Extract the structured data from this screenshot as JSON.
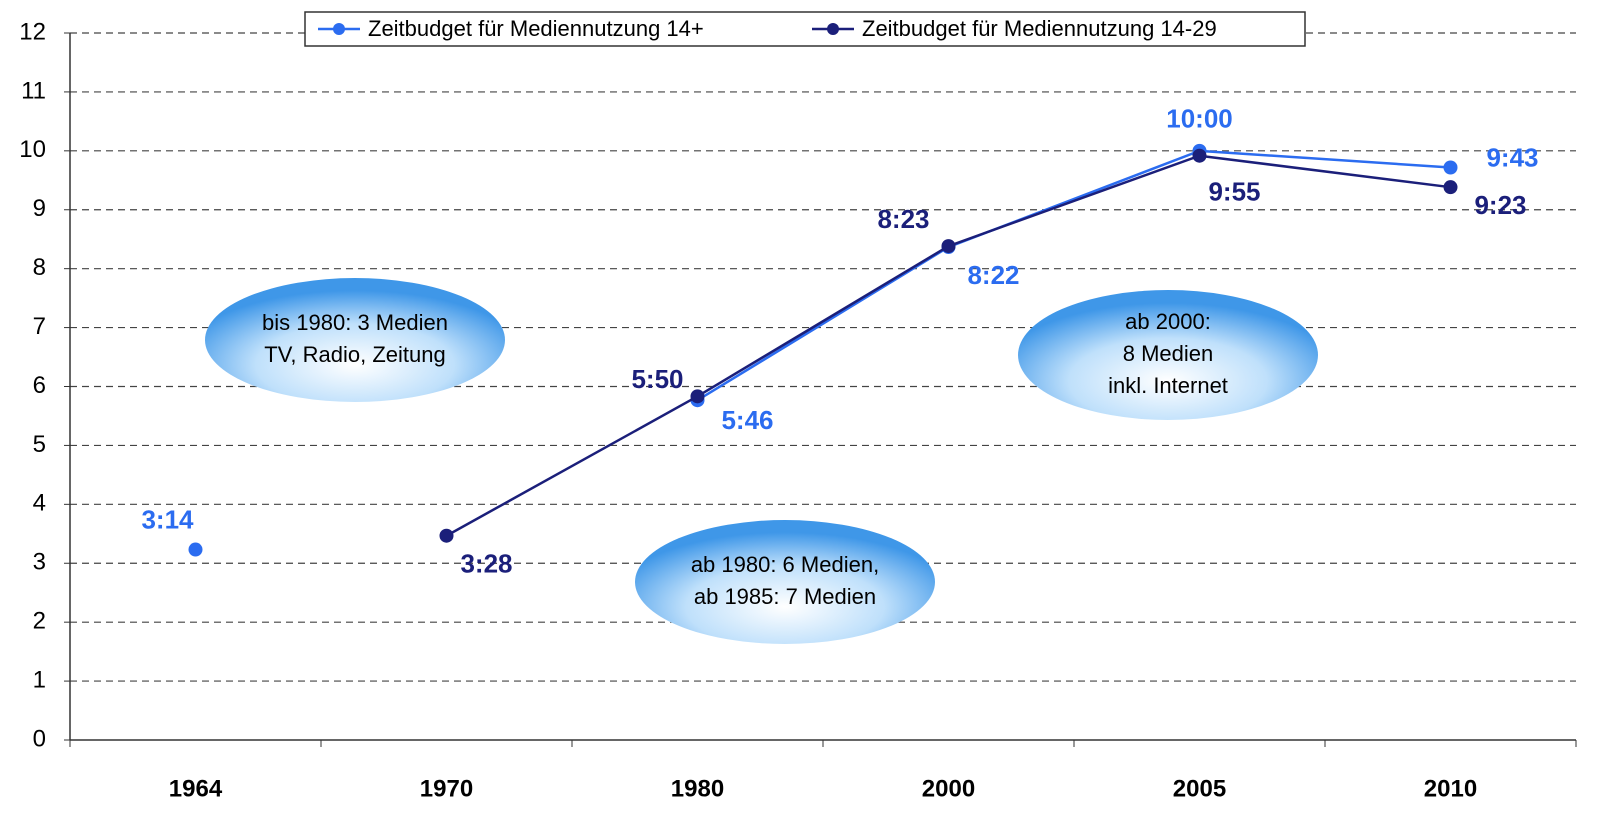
{
  "chart_data": {
    "type": "line",
    "categories": [
      "1964",
      "1970",
      "1980",
      "2000",
      "2005",
      "2010"
    ],
    "series": [
      {
        "name": "Zeitbudget für Mediennutzung 14+",
        "color": "#2b6cf0",
        "values": [
          3.233,
          null,
          5.767,
          8.367,
          10,
          9.717
        ],
        "value_labels": [
          "3:14",
          null,
          "5:46",
          "8:22",
          "10:00",
          "9:43"
        ]
      },
      {
        "name": "Zeitbudget für Mediennutzung 14-29",
        "color": "#1b1f7a",
        "values": [
          null,
          3.467,
          5.833,
          8.383,
          9.917,
          9.383
        ],
        "value_labels": [
          null,
          "3:28",
          "5:50",
          "8:23",
          "9:55",
          "9:23"
        ]
      }
    ],
    "ylim": [
      0,
      12
    ],
    "yticks": [
      0,
      1,
      2,
      3,
      4,
      5,
      6,
      7,
      8,
      9,
      10,
      11,
      12
    ],
    "grid": true,
    "legend": "top",
    "annotations": [
      {
        "lines": [
          "bis 1980: 3 Medien",
          "TV, Radio, Zeitung"
        ]
      },
      {
        "lines": [
          "ab 1980: 6 Medien,",
          "ab 1985: 7 Medien"
        ]
      },
      {
        "lines": [
          "ab 2000:",
          "8 Medien",
          "inkl. Internet"
        ]
      }
    ]
  }
}
